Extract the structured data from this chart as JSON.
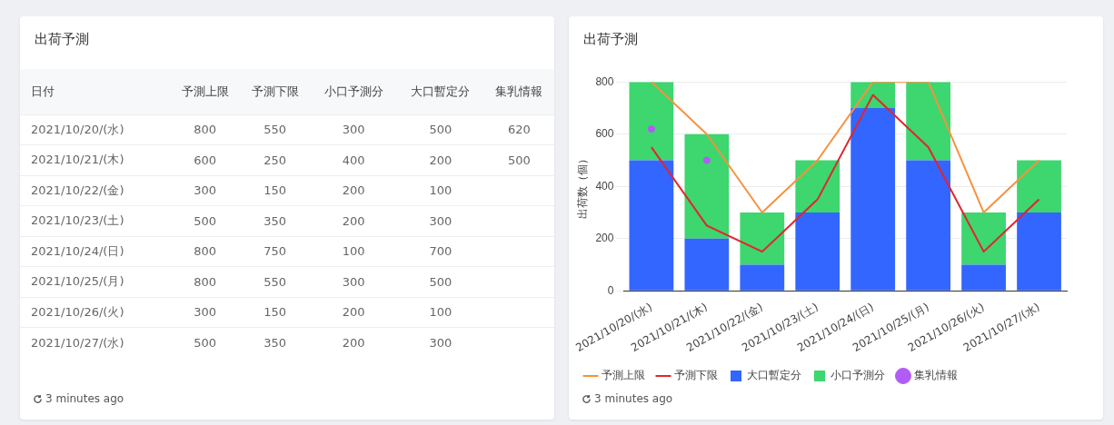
{
  "chart_data": [
    {
      "type": "other",
      "title": "出荷予測",
      "annotations": [
        "日付",
        "3 minutes ago"
      ],
      "data_labels": true,
      "categories": [
        "2021/10/20/(水)",
        "2021/10/21/(木)",
        "2021/10/22/(金)",
        "2021/10/23/(土)",
        "2021/10/24/(日)",
        "2021/10/25/(月)",
        "2021/10/26/(火)",
        "2021/10/27/(水)"
      ],
      "series": [
        {
          "name": "予測上限",
          "values": [
            800,
            600,
            300,
            500,
            800,
            800,
            300,
            500
          ]
        },
        {
          "name": "予測下限",
          "values": [
            550,
            250,
            150,
            350,
            750,
            550,
            150,
            350
          ]
        },
        {
          "name": "小口予測分",
          "values": [
            300,
            400,
            200,
            200,
            100,
            300,
            200,
            200
          ]
        },
        {
          "name": "大口暫定分",
          "values": [
            500,
            200,
            100,
            300,
            700,
            500,
            100,
            300
          ]
        },
        {
          "name": "集乳情報",
          "values": [
            620,
            500,
            null,
            null,
            null,
            null,
            null,
            null
          ]
        }
      ]
    },
    {
      "type": "bar",
      "title": "出荷予測",
      "ylabel": "出荷数（個）",
      "categories": [
        "2021/10/20/(水)",
        "2021/10/21/(木)",
        "2021/10/22/(金)",
        "2021/10/23/(土)",
        "2021/10/24/(日)",
        "2021/10/25/(月)",
        "2021/10/26/(火)",
        "2021/10/27/(水)"
      ],
      "series": [
        {
          "name": "予測上限",
          "type": "line",
          "color": "#f5923e",
          "values": [
            800,
            600,
            300,
            500,
            800,
            800,
            300,
            500
          ]
        },
        {
          "name": "予測下限",
          "type": "line",
          "color": "#e3242b",
          "values": [
            550,
            250,
            150,
            350,
            750,
            550,
            150,
            350
          ]
        },
        {
          "name": "大口暫定分",
          "type": "bar",
          "color": "#3366ff",
          "values": [
            500,
            200,
            100,
            300,
            700,
            500,
            100,
            300
          ]
        },
        {
          "name": "小口予測分",
          "type": "bar",
          "color": "#3dd66f",
          "values": [
            300,
            400,
            200,
            200,
            100,
            300,
            200,
            200
          ]
        },
        {
          "name": "集乳情報",
          "type": "scatter",
          "color": "#b05cf5",
          "values": [
            620,
            500,
            null,
            null,
            null,
            null,
            null,
            null
          ]
        }
      ],
      "stacked": true,
      "ylim": [
        0,
        800
      ],
      "yticks": [
        0,
        200,
        400,
        600,
        800
      ],
      "grid": "y",
      "legend": "bottom",
      "line_style": "solid",
      "annotations": [
        "3 minutes ago"
      ]
    }
  ]
}
